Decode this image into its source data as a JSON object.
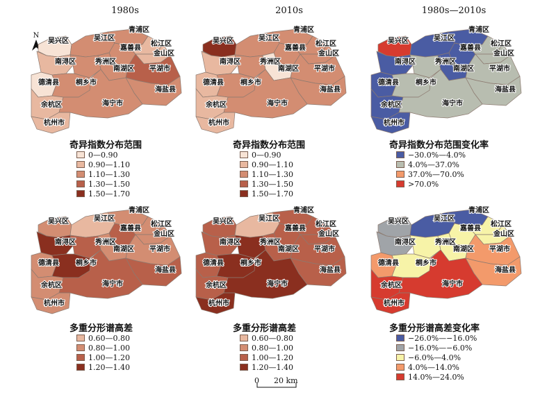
{
  "columns": [
    "1980s",
    "2010s",
    "1980s—2010s"
  ],
  "north_label": "N",
  "scale_label": "0      20 km",
  "colors": {
    "a": [
      "#f7e3d5",
      "#e8b8a0",
      "#d38d72",
      "#b8604a",
      "#8a2f1f"
    ],
    "change1": [
      "#4a5ca3",
      "#b8bdb0",
      "#f39a6b",
      "#d63b2f"
    ],
    "change2": [
      "#4a5ca3",
      "#a0a4a8",
      "#f7f3a8",
      "#f39a6b",
      "#d63b2f"
    ]
  },
  "legends": {
    "top_left": {
      "title": "奇异指数分布范围",
      "items": [
        "0—0.90",
        "0.90—1.10",
        "1.10—1.30",
        "1.30—1.50",
        "1.50—1.70"
      ]
    },
    "top_mid": {
      "title": "奇异指数分布范围",
      "items": [
        "0—0.90",
        "0.90—1.10",
        "1.10—1.30",
        "1.30—1.50",
        "1.50—1.70"
      ]
    },
    "top_right": {
      "title": "奇异指数分布范围变化率",
      "items": [
        "−30.0%—4.0%",
        "4.0%—37.0%",
        "37.0%—70.0%",
        ">70.0%"
      ]
    },
    "bot_left": {
      "title": "多重分形谱高差",
      "items": [
        "0.60—0.80",
        "0.80—1.00",
        "1.00—1.20",
        "1.20—1.40"
      ]
    },
    "bot_mid": {
      "title": "多重分形谱高差",
      "items": [
        "0.60—0.80",
        "0.80—1.00",
        "1.00—1.20",
        "1.20—1.40"
      ]
    },
    "bot_right": {
      "title": "多重分形谱高差变化率",
      "items": [
        "−26.0%—−16.0%",
        "−16.0%—−6.0%",
        "−6.0%—4.0%",
        "4.0%—14.0%",
        "14.0%—24.0%"
      ]
    }
  },
  "region_labels": [
    "青浦区",
    "吴兴区",
    "吴江区",
    "嘉善县",
    "松江区",
    "金山区",
    "南浔区",
    "秀洲区",
    "南湖区",
    "平湖市",
    "德清县",
    "桐乡市",
    "海盐县",
    "余杭区",
    "海宁市",
    "杭州市"
  ],
  "maps": {
    "top_left": {
      "吴兴区": 0,
      "南浔区": 1,
      "德清县": 0,
      "余杭区": 1,
      "杭州市": 1,
      "吴江区": 2,
      "秀洲区": 2,
      "桐乡市": 2,
      "海宁市": 2,
      "嘉善县": 2,
      "南湖区": 2,
      "海盐县": 2,
      "平湖市": 3,
      "青浦区": 2,
      "松江区": 1,
      "金山区": 1
    },
    "top_mid": {
      "吴兴区": 4,
      "南浔区": 1,
      "德清县": 1,
      "余杭区": 1,
      "杭州市": 1,
      "吴江区": 2,
      "秀洲区": 2,
      "桐乡市": 2,
      "海宁市": 2,
      "嘉善县": 2,
      "南湖区": 0,
      "海盐县": 2,
      "平湖市": 2,
      "青浦区": 2,
      "松江区": 2,
      "金山区": 2
    },
    "top_right": {
      "吴兴区": 3,
      "南浔区": 0,
      "德清县": 0,
      "余杭区": 0,
      "杭州市": 0,
      "吴江区": 0,
      "秀洲区": 1,
      "桐乡市": 1,
      "海宁市": 1,
      "嘉善县": 0,
      "南湖区": 0,
      "海盐县": 1,
      "平湖市": 1,
      "青浦区": 0,
      "松江区": 1,
      "金山区": 1
    },
    "bot_left": {
      "吴兴区": 1,
      "南浔区": 3,
      "德清县": 1,
      "余杭区": 1,
      "杭州市": 1,
      "吴江区": 0,
      "秀洲区": 2,
      "桐乡市": 3,
      "海宁市": 2,
      "嘉善县": 2,
      "南湖区": 1,
      "海盐县": 2,
      "平湖市": 1,
      "青浦区": 1,
      "松江区": 1,
      "金山区": 1
    },
    "bot_mid": {
      "吴兴区": 2,
      "南浔区": 2,
      "德清县": 2,
      "余杭区": 2,
      "杭州市": 3,
      "吴江区": 0,
      "秀洲区": 3,
      "桐乡市": 3,
      "海宁市": 3,
      "嘉善县": 2,
      "南湖区": 2,
      "海盐县": 2,
      "平湖市": 2,
      "青浦区": 2,
      "松江区": 2,
      "金山区": 2
    },
    "bot_right": {
      "吴兴区": 1,
      "南浔区": 1,
      "德清县": 3,
      "余杭区": 4,
      "杭州市": 4,
      "吴江区": 0,
      "秀洲区": 2,
      "桐乡市": 2,
      "海宁市": 4,
      "嘉善县": 2,
      "南湖区": 2,
      "海盐县": 3,
      "平湖市": 3,
      "青浦区": 0,
      "松江区": 2,
      "金山区": 2
    }
  }
}
